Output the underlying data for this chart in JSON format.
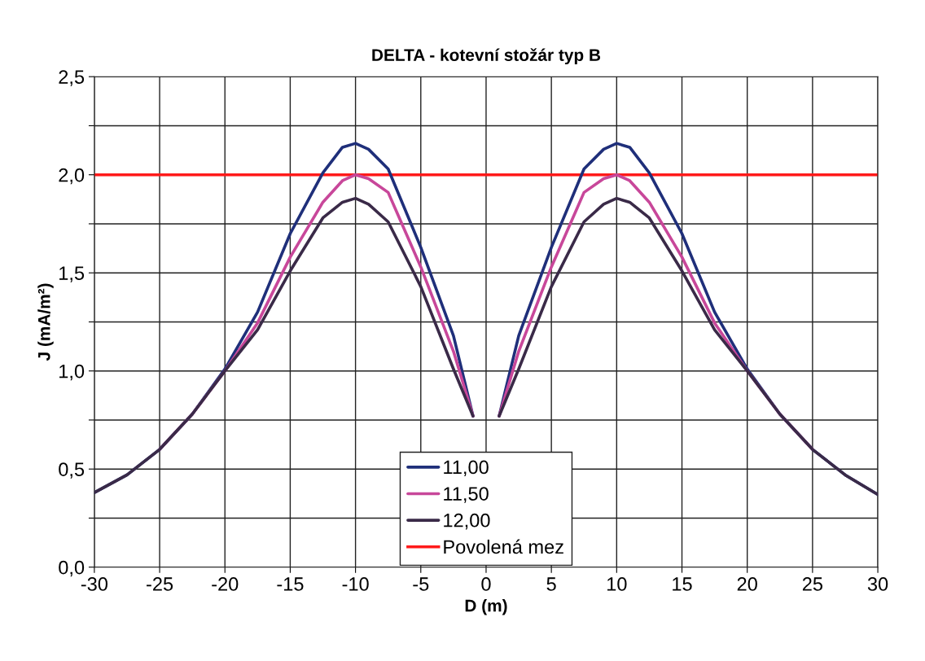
{
  "chart_data": {
    "type": "line",
    "title": "DELTA - kotevní stožár typ B",
    "xlabel": "D (m)",
    "ylabel": "J (mA/m²)",
    "x": [
      -30,
      -27.5,
      -25,
      -22.5,
      -20,
      -17.5,
      -15,
      -12.5,
      -11,
      -10,
      -9,
      -7.5,
      -5,
      -2.5,
      -1,
      0,
      1,
      2.5,
      5,
      7.5,
      9,
      10,
      11,
      12.5,
      15,
      17.5,
      20,
      22.5,
      25,
      27.5,
      30
    ],
    "series": [
      {
        "name": "11,00",
        "color": "#1f2f7a",
        "values": [
          0.38,
          0.47,
          0.6,
          0.78,
          1.01,
          1.3,
          1.7,
          2.01,
          2.14,
          2.16,
          2.13,
          2.03,
          1.63,
          1.18,
          0.77,
          null,
          0.77,
          1.18,
          1.63,
          2.03,
          2.13,
          2.16,
          2.14,
          2.01,
          1.7,
          1.3,
          1.01,
          0.78,
          0.6,
          0.47,
          0.37
        ]
      },
      {
        "name": "11,50",
        "color": "#c8479a",
        "values": [
          null,
          null,
          0.6,
          0.78,
          1.0,
          1.245,
          1.58,
          1.86,
          1.97,
          2.0,
          1.98,
          1.91,
          1.53,
          1.1,
          0.77,
          null,
          0.77,
          1.1,
          1.53,
          1.91,
          1.98,
          2.0,
          1.97,
          1.86,
          1.58,
          1.245,
          1.0,
          0.78,
          0.6,
          null,
          null
        ]
      },
      {
        "name": "12,00",
        "color": "#3a2a48",
        "values": [
          0.38,
          0.47,
          0.6,
          0.78,
          1.0,
          1.21,
          1.51,
          1.78,
          1.86,
          1.88,
          1.85,
          1.76,
          1.43,
          1.01,
          0.77,
          null,
          0.77,
          1.01,
          1.43,
          1.76,
          1.85,
          1.88,
          1.86,
          1.78,
          1.51,
          1.21,
          1.0,
          0.78,
          0.6,
          0.47,
          0.37
        ]
      }
    ],
    "ref_lines": [
      {
        "axis": "y",
        "value": 2.0,
        "label": "Povolená mez",
        "color": "#ff1a1a"
      }
    ],
    "xlim": [
      -30,
      30
    ],
    "xticks": [
      -30,
      -25,
      -20,
      -15,
      -10,
      -5,
      0,
      5,
      10,
      15,
      20,
      25,
      30
    ],
    "ylim": [
      0,
      2.5
    ],
    "yticks": [
      {
        "value": 0,
        "label": "0,0"
      },
      {
        "value": 0.25,
        "label": null
      },
      {
        "value": 0.5,
        "label": "0,5"
      },
      {
        "value": 0.75,
        "label": null
      },
      {
        "value": 1.0,
        "label": "1,0"
      },
      {
        "value": 1.25,
        "label": null
      },
      {
        "value": 1.5,
        "label": "1,5"
      },
      {
        "value": 1.75,
        "label": null
      },
      {
        "value": 2.0,
        "label": "2,0"
      },
      {
        "value": 2.25,
        "label": null
      },
      {
        "value": 2.5,
        "label": "2,5"
      }
    ],
    "grid": true,
    "legend": "bottom",
    "marker": "none",
    "line_style": "solid"
  }
}
